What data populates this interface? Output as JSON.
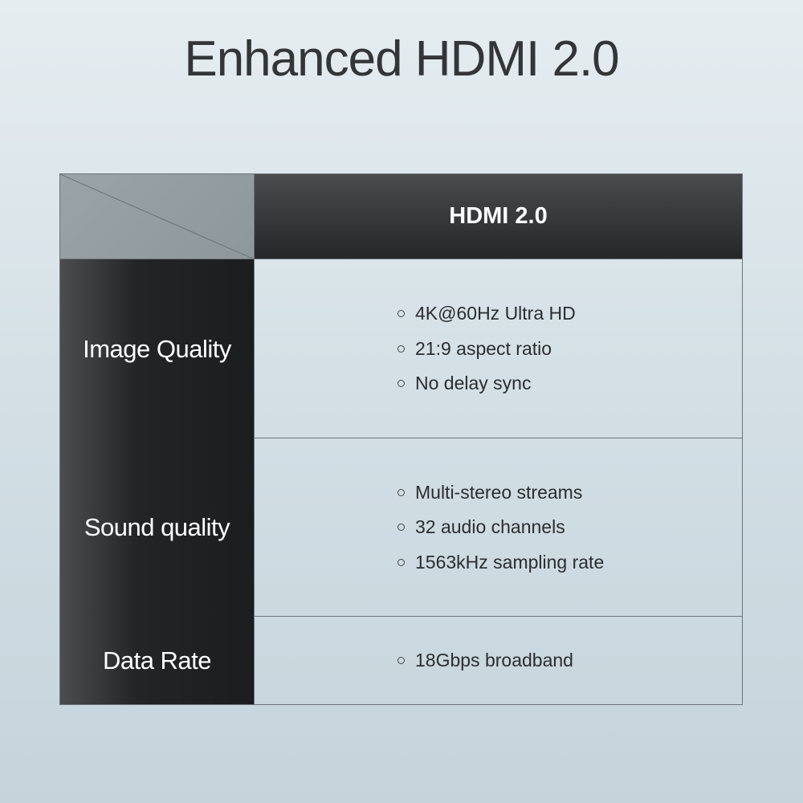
{
  "title": "Enhanced HDMI 2.0",
  "table": {
    "column_header": "HDMI 2.0",
    "rows": [
      {
        "label": "Image Quality",
        "items": [
          "4K@60Hz Ultra HD",
          "21:9 aspect ratio",
          "No delay sync"
        ]
      },
      {
        "label": "Sound quality",
        "items": [
          "Multi-stereo streams",
          "32 audio channels",
          "1563kHz sampling rate"
        ]
      },
      {
        "label": "Data Rate",
        "items": [
          "18Gbps broadband"
        ]
      }
    ]
  }
}
